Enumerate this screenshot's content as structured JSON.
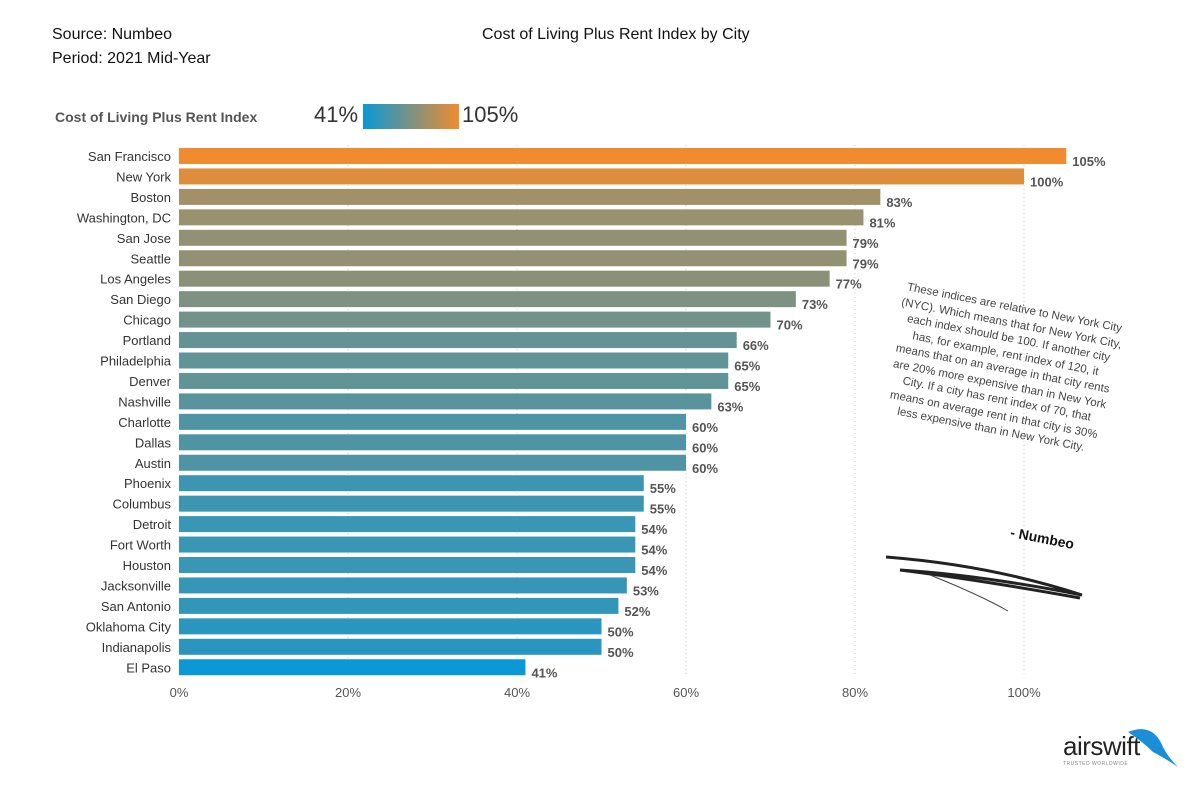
{
  "header": {
    "source": "Source: Numbeo",
    "period": "Period: 2021 Mid-Year"
  },
  "chart_data": {
    "type": "bar",
    "orientation": "horizontal",
    "title": "Cost of Living Plus Rent Index by City",
    "legend": {
      "title": "Cost of Living Plus Rent Index",
      "min_label": "41%",
      "max_label": "105%",
      "min_color": "#0a98d6",
      "max_color": "#f08c2f"
    },
    "categories": [
      "San Francisco",
      "New York",
      "Boston",
      "Washington, DC",
      "San Jose",
      "Seattle",
      "Los Angeles",
      "San Diego",
      "Chicago",
      "Portland",
      "Philadelphia",
      "Denver",
      "Nashville",
      "Charlotte",
      "Dallas",
      "Austin",
      "Phoenix",
      "Columbus",
      "Detroit",
      "Fort Worth",
      "Houston",
      "Jacksonville",
      "San Antonio",
      "Oklahoma City",
      "Indianapolis",
      "El Paso"
    ],
    "values": [
      105,
      100,
      83,
      81,
      79,
      79,
      77,
      73,
      70,
      66,
      65,
      65,
      63,
      60,
      60,
      60,
      55,
      55,
      54,
      54,
      54,
      53,
      52,
      50,
      50,
      41
    ],
    "value_labels": [
      "105%",
      "100%",
      "83%",
      "81%",
      "79%",
      "79%",
      "77%",
      "73%",
      "70%",
      "66%",
      "65%",
      "65%",
      "63%",
      "60%",
      "60%",
      "60%",
      "55%",
      "55%",
      "54%",
      "54%",
      "54%",
      "53%",
      "52%",
      "50%",
      "50%",
      "41%"
    ],
    "xticks": [
      "0%",
      "20%",
      "40%",
      "60%",
      "80%",
      "100%"
    ],
    "xtick_values": [
      0,
      20,
      40,
      60,
      80,
      100
    ],
    "xlim": [
      0,
      110
    ],
    "grid": true
  },
  "note": {
    "text": "These indices are relative to New York City (NYC). Which means that for New York City, each index should be 100. If another city has, for example, rent index of 120, it means that on an average in that city rents are 20% more expensive than in New York City. If a city has rent index of 70, that means on average rent in that city is 30% less expensive than in New York City.",
    "attribution": "- Numbeo"
  },
  "logo": {
    "name": "airswift",
    "tagline": "TRUSTED WORLDWIDE"
  }
}
